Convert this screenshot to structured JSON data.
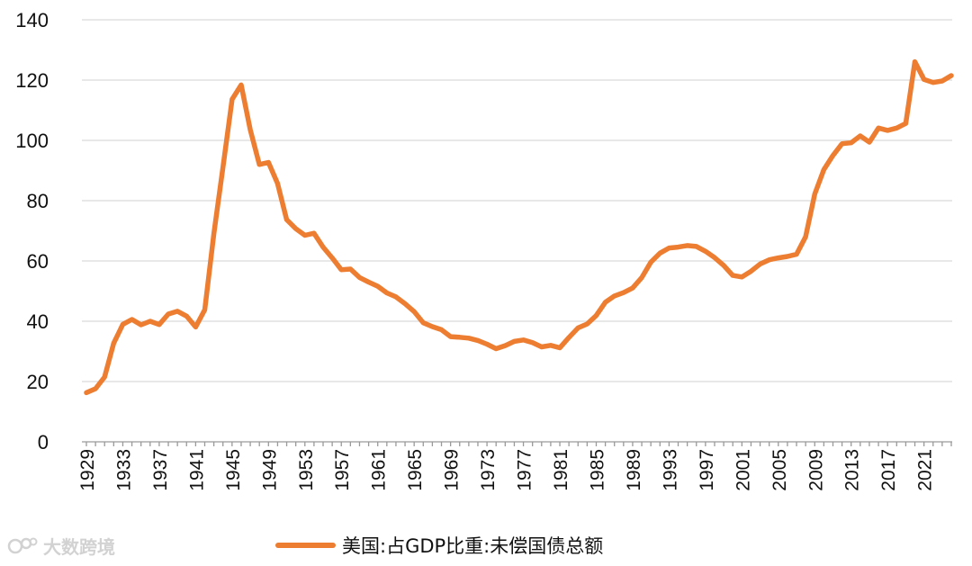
{
  "chart_data": {
    "type": "line",
    "title": "",
    "xlabel": "",
    "ylabel": "",
    "ylim": [
      0,
      140
    ],
    "y_ticks": [
      "0",
      "20",
      "40",
      "60",
      "80",
      "100",
      "120",
      "140"
    ],
    "x_tick_labels": [
      "1929",
      "1933",
      "1937",
      "1941",
      "1945",
      "1949",
      "1953",
      "1957",
      "1961",
      "1965",
      "1969",
      "1973",
      "1977",
      "1981",
      "1985",
      "1989",
      "1993",
      "1997",
      "2001",
      "2005",
      "2009",
      "2013",
      "2017",
      "2021"
    ],
    "grid": "horizontal",
    "legend_position": "bottom",
    "series": [
      {
        "name": "美国:占GDP比重:未偿国债总额",
        "color": "#ED7D31",
        "x": [
          1929,
          1930,
          1931,
          1932,
          1933,
          1934,
          1935,
          1936,
          1937,
          1938,
          1939,
          1940,
          1941,
          1942,
          1943,
          1944,
          1945,
          1946,
          1947,
          1948,
          1949,
          1950,
          1951,
          1952,
          1953,
          1954,
          1955,
          1956,
          1957,
          1958,
          1959,
          1960,
          1961,
          1962,
          1963,
          1964,
          1965,
          1966,
          1967,
          1968,
          1969,
          1970,
          1971,
          1972,
          1973,
          1974,
          1975,
          1976,
          1977,
          1978,
          1979,
          1980,
          1981,
          1982,
          1983,
          1984,
          1985,
          1986,
          1987,
          1988,
          1989,
          1990,
          1991,
          1992,
          1993,
          1994,
          1995,
          1996,
          1997,
          1998,
          1999,
          2000,
          2001,
          2002,
          2003,
          2004,
          2005,
          2006,
          2007,
          2008,
          2009,
          2010,
          2011,
          2012,
          2013,
          2014,
          2015,
          2016,
          2017,
          2018,
          2019,
          2020,
          2021,
          2022,
          2023,
          2024
        ],
        "values": [
          16.3,
          17.6,
          21.5,
          32.7,
          39.0,
          40.6,
          38.8,
          40.0,
          38.9,
          42.4,
          43.3,
          41.7,
          38.1,
          43.8,
          69.0,
          91.0,
          113.6,
          118.4,
          103.5,
          92.0,
          92.7,
          85.7,
          73.7,
          70.7,
          68.5,
          69.2,
          64.6,
          61.0,
          57.1,
          57.3,
          54.5,
          53.0,
          51.6,
          49.4,
          48.1,
          45.8,
          43.2,
          39.5,
          38.2,
          37.2,
          34.9,
          34.7,
          34.4,
          33.6,
          32.4,
          30.9,
          31.9,
          33.3,
          33.8,
          32.9,
          31.5,
          32.0,
          31.2,
          34.6,
          37.8,
          39.1,
          41.9,
          46.3,
          48.4,
          49.5,
          51.0,
          54.5,
          59.6,
          62.6,
          64.3,
          64.6,
          65.1,
          64.8,
          63.2,
          61.1,
          58.5,
          55.2,
          54.7,
          56.6,
          59.0,
          60.4,
          61.0,
          61.5,
          62.2,
          68.0,
          82.2,
          90.3,
          95.0,
          98.9,
          99.2,
          101.5,
          99.4,
          104.1,
          103.3,
          104.1,
          105.6,
          126.1,
          120.2,
          119.2,
          119.7,
          121.5
        ]
      }
    ]
  },
  "legend": {
    "label": "美国:占GDP比重:未偿国债总额"
  },
  "watermark": {
    "text": "大数跨境"
  }
}
